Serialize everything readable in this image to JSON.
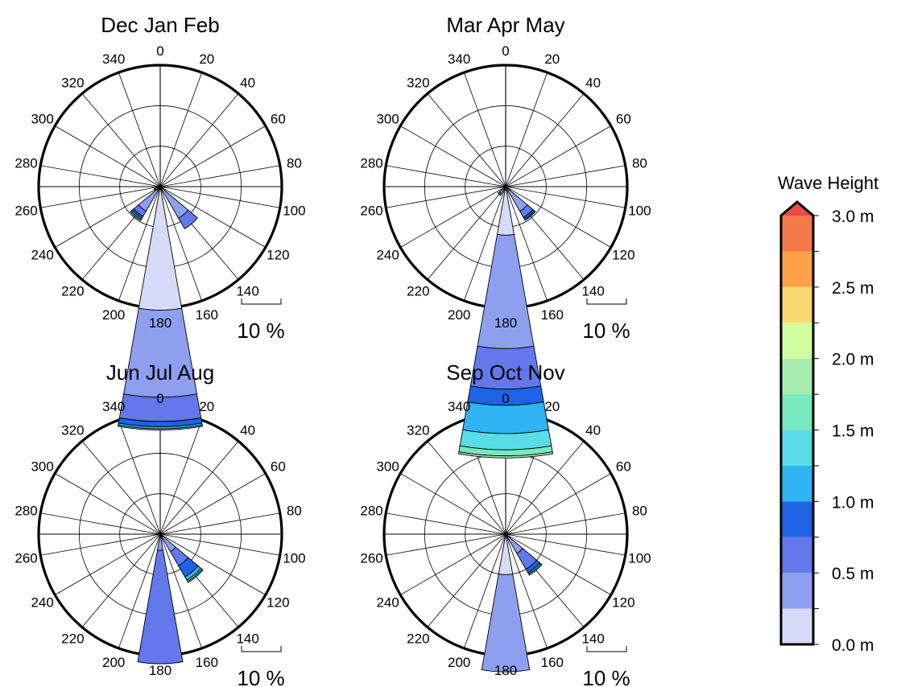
{
  "figure": {
    "colorbar": {
      "title": "Wave Height",
      "tick_labels": [
        "0.0 m",
        "0.5 m",
        "1.0 m",
        "1.5 m",
        "2.0 m",
        "2.5 m",
        "3.0 m"
      ],
      "tick_values": [
        0,
        0.5,
        1,
        1.5,
        2,
        2.5,
        3
      ],
      "bin_width": 0.25,
      "colors": [
        "#d6dcf8",
        "#8e9ff0",
        "#6378ea",
        "#1e63e6",
        "#2fb4f4",
        "#5adce6",
        "#78e8c0",
        "#a8ecb0",
        "#d2fca0",
        "#f8d870",
        "#fca048",
        "#f47848",
        "#e84c48"
      ],
      "extend": "max"
    },
    "direction_labels": [
      "0",
      "20",
      "40",
      "60",
      "80",
      "100",
      "120",
      "140",
      "160",
      "180",
      "200",
      "220",
      "240",
      "260",
      "280",
      "300",
      "320",
      "340"
    ],
    "scale_label": "10 %"
  },
  "chart_data": [
    {
      "type": "wind-rose",
      "title": "Dec Jan Feb",
      "radius_max_percent": 30,
      "grid_circles_percent": [
        10,
        20
      ],
      "sector_width_deg": 20,
      "sectors": [
        {
          "direction": 140,
          "bins": [
            {
              "height_bin": "0.0-0.25 m",
              "percent": 0.5
            },
            {
              "height_bin": "0.25-0.5 m",
              "percent": 8.5
            },
            {
              "height_bin": "0.5-0.75 m",
              "percent": 3.0
            }
          ]
        },
        {
          "direction": 180,
          "bins": [
            {
              "height_bin": "0.0-0.25 m",
              "percent": 30.5
            },
            {
              "height_bin": "0.25-0.5 m",
              "percent": 21.5
            },
            {
              "height_bin": "0.5-0.75 m",
              "percent": 6.0
            },
            {
              "height_bin": "0.75-1.0 m",
              "percent": 1.3
            },
            {
              "height_bin": "1.0-1.25 m",
              "percent": 0.5
            },
            {
              "height_bin": "1.25-1.5 m",
              "percent": 0.3
            }
          ]
        },
        {
          "direction": 220,
          "bins": [
            {
              "height_bin": "0.0-0.25 m",
              "percent": 1.0
            },
            {
              "height_bin": "0.25-0.5 m",
              "percent": 6.0
            },
            {
              "height_bin": "0.5-0.75 m",
              "percent": 1.5
            },
            {
              "height_bin": "0.75-1.0 m",
              "percent": 0.5
            },
            {
              "height_bin": "1.0-1.25 m",
              "percent": 0.4
            },
            {
              "height_bin": "1.25-1.5 m",
              "percent": 0.3
            }
          ]
        },
        {
          "direction": 240,
          "bins": [
            {
              "height_bin": "0.0-0.25 m",
              "percent": 0.5
            },
            {
              "height_bin": "0.25-0.5 m",
              "percent": 0.8
            },
            {
              "height_bin": "0.5-0.75 m",
              "percent": 0.3
            }
          ]
        }
      ]
    },
    {
      "type": "wind-rose",
      "title": "Mar Apr May",
      "radius_max_percent": 30,
      "grid_circles_percent": [
        10,
        20
      ],
      "sector_width_deg": 20,
      "sectors": [
        {
          "direction": 140,
          "bins": [
            {
              "height_bin": "0.0-0.25 m",
              "percent": 1.0
            },
            {
              "height_bin": "0.25-0.5 m",
              "percent": 6.0
            },
            {
              "height_bin": "0.5-0.75 m",
              "percent": 1.8
            },
            {
              "height_bin": "0.75-1.0 m",
              "percent": 0.5
            },
            {
              "height_bin": "1.0-1.25 m",
              "percent": 0.3
            }
          ]
        },
        {
          "direction": 180,
          "bins": [
            {
              "height_bin": "0.0-0.25 m",
              "percent": 12.0
            },
            {
              "height_bin": "0.25-0.5 m",
              "percent": 28.0
            },
            {
              "height_bin": "0.5-0.75 m",
              "percent": 10.0
            },
            {
              "height_bin": "0.75-1.0 m",
              "percent": 4.0
            },
            {
              "height_bin": "1.0-1.25 m",
              "percent": 7.0
            },
            {
              "height_bin": "1.25-1.5 m",
              "percent": 4.0
            },
            {
              "height_bin": "1.5-1.75 m",
              "percent": 1.5
            },
            {
              "height_bin": "1.75-2.0 m",
              "percent": 0.5
            }
          ]
        },
        {
          "direction": 220,
          "bins": [
            {
              "height_bin": "0.0-0.25 m",
              "percent": 0.5
            },
            {
              "height_bin": "0.25-0.5 m",
              "percent": 1.5
            },
            {
              "height_bin": "0.5-0.75 m",
              "percent": 0.5
            }
          ]
        }
      ]
    },
    {
      "type": "wind-rose",
      "title": "Jun Jul Aug",
      "radius_max_percent": 30,
      "grid_circles_percent": [
        10,
        20
      ],
      "sector_width_deg": 20,
      "sectors": [
        {
          "direction": 140,
          "bins": [
            {
              "height_bin": "0.0-0.25 m",
              "percent": 0.8
            },
            {
              "height_bin": "0.25-0.5 m",
              "percent": 4.2
            },
            {
              "height_bin": "0.5-0.75 m",
              "percent": 4.0
            },
            {
              "height_bin": "0.75-1.0 m",
              "percent": 3.2
            },
            {
              "height_bin": "1.0-1.25 m",
              "percent": 0.9
            },
            {
              "height_bin": "1.25-1.5 m",
              "percent": 0.4
            },
            {
              "height_bin": "1.5-1.75 m",
              "percent": 0.3
            }
          ]
        },
        {
          "direction": 180,
          "bins": [
            {
              "height_bin": "0.0-0.25 m",
              "percent": 1.0
            },
            {
              "height_bin": "0.25-0.5 m",
              "percent": 3.0
            },
            {
              "height_bin": "0.5-0.75 m",
              "percent": 28.0
            }
          ]
        }
      ]
    },
    {
      "type": "wind-rose",
      "title": "Sep Oct Nov",
      "radius_max_percent": 30,
      "grid_circles_percent": [
        10,
        20
      ],
      "sector_width_deg": 20,
      "sectors": [
        {
          "direction": 140,
          "bins": [
            {
              "height_bin": "0.0-0.25 m",
              "percent": 1.0
            },
            {
              "height_bin": "0.25-0.5 m",
              "percent": 4.5
            },
            {
              "height_bin": "0.5-0.75 m",
              "percent": 4.5
            },
            {
              "height_bin": "0.75-1.0 m",
              "percent": 1.0
            },
            {
              "height_bin": "1.0-1.25 m",
              "percent": 0.4
            },
            {
              "height_bin": "1.25-1.5 m",
              "percent": 0.3
            }
          ]
        },
        {
          "direction": 180,
          "bins": [
            {
              "height_bin": "0.0-0.25 m",
              "percent": 10.0
            },
            {
              "height_bin": "0.25-0.5 m",
              "percent": 24.0
            }
          ]
        }
      ]
    }
  ]
}
